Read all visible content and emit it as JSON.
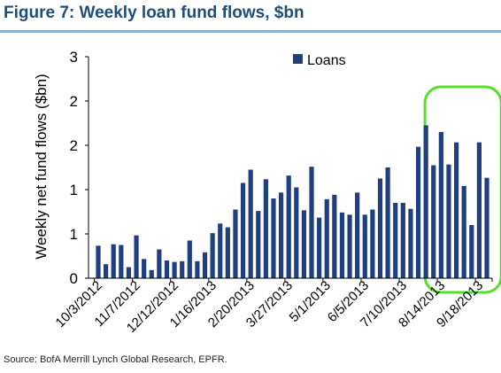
{
  "figure": {
    "title": "Figure 7: Weekly loan fund flows, $bn",
    "source": "Source: BofA Merrill Lynch Global Research, EPFR."
  },
  "colors": {
    "bar": "#1f3f80",
    "title": "#1f4e79",
    "highlight": "#55e02a",
    "rule": "#8fb0d0"
  },
  "chart_data": {
    "type": "bar",
    "ylabel": "Weekly net fund flows ($bn)",
    "xlabel": "",
    "ylim": [
      0,
      3
    ],
    "y_tick_labels": [
      "0",
      "1",
      "1",
      "2",
      "2",
      "3"
    ],
    "x_tick_labels": [
      "10/3/2012",
      "11/7/2012",
      "12/12/2012",
      "1/16/2013",
      "2/20/2013",
      "3/27/2013",
      "5/1/2013",
      "6/5/2013",
      "7/10/2013",
      "8/14/2013",
      "9/18/2013"
    ],
    "x_tick_label_every": 5,
    "grid": false,
    "legend": {
      "position": "top-right",
      "entries": [
        "Loans"
      ]
    },
    "highlight": {
      "shape": "rounded-rectangle",
      "from_index": 44,
      "to_index": 52
    },
    "series": [
      {
        "name": "Loans",
        "values": [
          0.44,
          0.19,
          0.46,
          0.45,
          0.15,
          0.58,
          0.26,
          0.11,
          0.39,
          0.24,
          0.22,
          0.23,
          0.51,
          0.23,
          0.35,
          0.61,
          0.74,
          0.69,
          0.93,
          1.29,
          1.47,
          0.91,
          1.34,
          1.08,
          1.16,
          1.39,
          1.23,
          0.92,
          1.51,
          0.82,
          1.07,
          1.13,
          0.89,
          0.86,
          1.16,
          0.86,
          0.93,
          1.35,
          1.5,
          1.02,
          1.02,
          0.94,
          1.78,
          2.07,
          1.53,
          1.98,
          1.54,
          1.84,
          1.25,
          0.72,
          1.84,
          1.36
        ]
      }
    ]
  }
}
